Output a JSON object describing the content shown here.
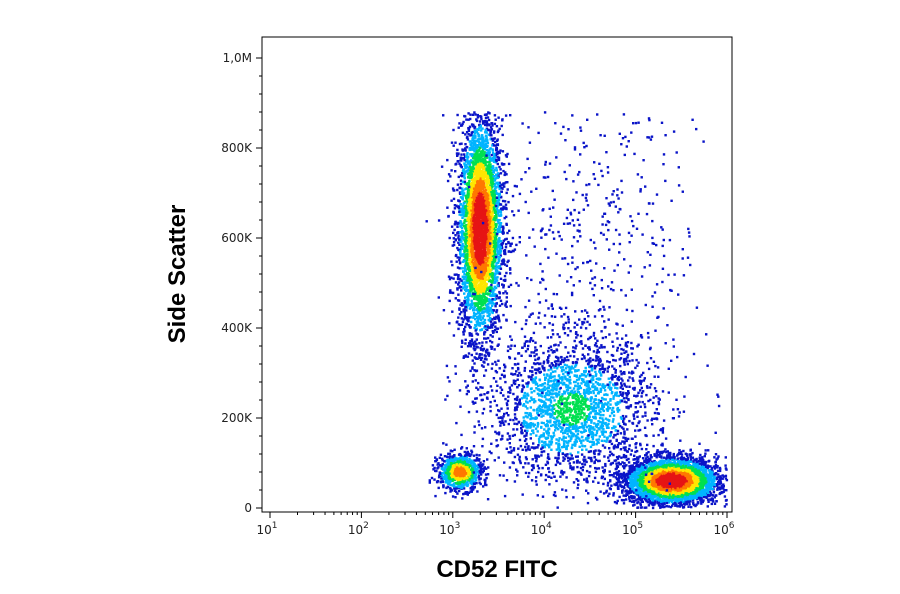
{
  "chart_data": {
    "type": "scatter",
    "title": "",
    "xlabel": "CD52 FITC",
    "ylabel": "Side Scatter",
    "x_scale": "log",
    "y_scale": "linear",
    "xlim": [
      10,
      1000000
    ],
    "ylim": [
      0,
      1000000
    ],
    "x_ticks": [
      {
        "value": 10,
        "base": "10",
        "exp": "1"
      },
      {
        "value": 100,
        "base": "10",
        "exp": "2"
      },
      {
        "value": 1000,
        "base": "10",
        "exp": "3"
      },
      {
        "value": 10000,
        "base": "10",
        "exp": "4"
      },
      {
        "value": 100000,
        "base": "10",
        "exp": "5"
      },
      {
        "value": 1000000,
        "base": "10",
        "exp": "6"
      }
    ],
    "y_ticks": [
      {
        "value": 0,
        "label": "0"
      },
      {
        "value": 200000,
        "label": "200K"
      },
      {
        "value": 400000,
        "label": "400K"
      },
      {
        "value": 600000,
        "label": "600K"
      },
      {
        "value": 800000,
        "label": "800K"
      },
      {
        "value": 1000000,
        "label": "1,0M"
      }
    ],
    "grid": false,
    "legend": "none",
    "color_scale": [
      "#0a14c8",
      "#00b4ff",
      "#00e050",
      "#ffe600",
      "#ff7800",
      "#e61414"
    ],
    "populations": [
      {
        "x": 2000,
        "y": 620000,
        "spread_log_x": 0.12,
        "spread_y": 120000,
        "density": "high"
      },
      {
        "x": 250000,
        "y": 60000,
        "spread_log_x": 0.25,
        "spread_y": 25000,
        "density": "high"
      },
      {
        "x": 1200,
        "y": 80000,
        "spread_log_x": 0.12,
        "spread_y": 20000,
        "density": "medium"
      },
      {
        "x": 20000,
        "y": 220000,
        "spread_log_x": 0.45,
        "spread_y": 80000,
        "density": "low"
      },
      {
        "x": 30000,
        "y": 600000,
        "spread_log_x": 0.6,
        "spread_y": 200000,
        "density": "sparse"
      }
    ]
  }
}
